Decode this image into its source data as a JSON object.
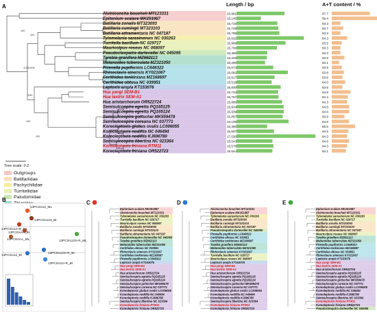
{
  "panel_a": {
    "label": "A",
    "length_header": "Length / bp",
    "at_header": "A+T content / %",
    "tree_scale": "Tree scale: 0.2",
    "taxa": [
      {
        "name": "Alviniconcha boucheti MT123331",
        "length": "15,961",
        "at": "67.7",
        "family": "Outgroups",
        "red": false
      },
      {
        "name": "Epitonium scalare MK251987",
        "length": "15,145",
        "at": "69.4",
        "family": "Outgroups",
        "red": false
      },
      {
        "name": "Batillaria zonalis MT323093",
        "length": "15,716",
        "at": "63.3",
        "family": "Batillariidae",
        "red": false
      },
      {
        "name": "Batillaria cumingii MT323103",
        "length": "15,749",
        "at": "63.7",
        "family": "Batillariidae",
        "red": false
      },
      {
        "name": "Batillaria attramentaria NC 047187",
        "length": "15,785",
        "at": "63.3",
        "family": "Batillariidae",
        "red": false
      },
      {
        "name": "Tylomelania sarasinorum NC 030263",
        "length": "16,632",
        "at": "64.3",
        "family": "Pachychilidae",
        "red": false
      },
      {
        "name": "Turritella bacillum NC 029717",
        "length": "15,999",
        "at": "63.5",
        "family": "Turritellidae",
        "red": false
      },
      {
        "name": "Mauricolpus roseus NC 068097",
        "length": "15,700",
        "at": "63.3",
        "family": "Turritellidae",
        "red": false
      },
      {
        "name": "Pseudocleopatra dartevellei NC 045095",
        "length": "15,366",
        "at": "63.3",
        "family": "Paludomidae",
        "red": false
      },
      {
        "name": "Tarebia granifera MZ662113",
        "length": "15,349",
        "at": "63.9",
        "family": "Thiaridae",
        "red": false
      },
      {
        "name": "Melanoides tuberculata MZ321050",
        "length": "15,290",
        "at": "63.1",
        "family": "Thiaridae",
        "red": false
      },
      {
        "name": "Pirenella pupiformis LC648322",
        "length": "15,574",
        "at": "63.5",
        "family": "Potamididae",
        "red": false
      },
      {
        "name": "Rhinoclavis sinensis KY021067",
        "length": "16,082",
        "at": "63.8",
        "family": "Potamididae",
        "red": false
      },
      {
        "name": "Cerithidea tonkiniana MZ168697",
        "length": "15,617",
        "at": "63.6",
        "family": "Potamididae",
        "red": false
      },
      {
        "name": "Cerithidea obtusa NC 039951",
        "length": "15,518",
        "at": "64.0",
        "family": "Potamididae",
        "red": false
      },
      {
        "name": "Leptoxis ampla KT153076",
        "length": "15,830",
        "at": "63.6",
        "family": "Pleuroceridae",
        "red": false
      },
      {
        "name": "Hua yangi SEM-B1",
        "length": "15,744",
        "at": "64.8",
        "family": "Semisulcospiridae",
        "red": true
      },
      {
        "name": "Hua textrix SEM-A1",
        "length": "15,757",
        "at": "64.4",
        "family": "Semisulcospiridae",
        "red": true
      },
      {
        "name": "Hua aristarchorum OR522724",
        "length": "15,880",
        "at": "64.3",
        "family": "Semisulcospiridae",
        "red": false
      },
      {
        "name": "Semisulcospira egretta PQ165125",
        "length": "15,934",
        "at": "64.6",
        "family": "Semisulcospiridae",
        "red": false
      },
      {
        "name": "Semisulcospira egretta PQ165124",
        "length": "15,939",
        "at": "64.6",
        "family": "Semisulcospiridae",
        "red": false
      },
      {
        "name": "Semisulcospira gottschei MK559478",
        "length": "15,897",
        "at": "63.9",
        "family": "Semisulcospiridae",
        "red": false
      },
      {
        "name": "Semisulcospira coreana NC 037771",
        "length": "16,105",
        "at": "64.6",
        "family": "Semisulcospiridae",
        "red": false
      },
      {
        "name": "Koreoleptoxis globus ovalis LC006055",
        "length": "15,360",
        "at": "65.5",
        "family": "Semisulcospiridae",
        "red": false
      },
      {
        "name": "Koreoleptoxis nodifila NC 046494",
        "length": "15,597",
        "at": "64.5",
        "family": "Semisulcospiridae",
        "red": false
      },
      {
        "name": "Koreoleptoxis nodifila KJ696780",
        "length": "17,030",
        "at": "64.3",
        "family": "Semisulcospiridae",
        "red": false
      },
      {
        "name": "Semisulcospira libertina NC 023364",
        "length": "15,543",
        "at": "64.6",
        "family": "Semisulcospiridae",
        "red": false
      },
      {
        "name": "Koreoleptoxis friniana RTM11",
        "length": "15,578",
        "at": "64.3",
        "family": "Semisulcospiridae",
        "red": true
      },
      {
        "name": "Koreoleptoxis friniana OR522723",
        "length": "15,544",
        "at": "64.1",
        "family": "Semisulcospiridae",
        "red": false
      }
    ],
    "nodes": [
      "100",
      "100",
      "1/100/100",
      "1/90",
      "100",
      "100"
    ],
    "legend": [
      {
        "label": "Outgroups",
        "color": "#f6c7c7"
      },
      {
        "label": "Batillariidae",
        "color": "#f8dfb8"
      },
      {
        "label": "Pachychilidae",
        "color": "#f4eca2"
      },
      {
        "label": "Turritellidae",
        "color": "#e7efb3"
      },
      {
        "label": "Paludomidae",
        "color": "#c8e6b2"
      },
      {
        "label": "Thiaridae",
        "color": "#a7dbc8"
      },
      {
        "label": "Potamididae",
        "color": "#a8dde6"
      },
      {
        "label": "Pleuroceridae",
        "color": "#b8cde9"
      },
      {
        "label": "Semisulcospiridae",
        "color": "#d3bde3"
      }
    ]
  },
  "panel_b": {
    "label": "B",
    "points": [
      {
        "label": "13PCGs12_ML",
        "color": "#e5562a"
      },
      {
        "label": "13PCGs123_BI",
        "color": "#8a3a20"
      },
      {
        "label": "13PCGs12+R_ML",
        "color": "#c33a1a"
      },
      {
        "label": "13PCGsAA_BI",
        "color": "#a84b2a"
      },
      {
        "label": "13PCGsAA_ML",
        "color": "#b35530"
      },
      {
        "label": "13PCGs123+R_ML",
        "color": "#4aa83a"
      },
      {
        "label": "13PCGs123+R_BI",
        "color": "#2b6ec2"
      },
      {
        "label": "13PCGs12_BI",
        "color": "#2f6fc0"
      },
      {
        "label": "13PCGs12+R_BI",
        "color": "#3d85d8"
      }
    ]
  },
  "panel_c": {
    "label": "C",
    "marker_color": "#d9362a",
    "taxa": [
      "Epitonium scalare MK251987",
      "Alviniconcha boucheti MT123331",
      "Tylomelania sarasinorum NC 030263",
      "Turritella bacillum NC 029717",
      "Mauricolpus roseus NC 068097",
      "Batillaria zonalis MT323093",
      "Batillaria cumingii MT323103",
      "Batillaria attramentaria NC 047187",
      "Pseudocleopatra dartevellei NC 045095",
      "Tarebia granifera MZ662113",
      "Melanoides tuberculata MZ321050",
      "Cerithidea obtusa NC 039951",
      "Rhinoclavis sinensis KY021067",
      "Cerithidea tonkiniana MZ168697",
      "Pirenella pupiformis LC648322",
      "Leptoxis ampla KT153076",
      "Hua yangi SEM-B1",
      "Hua textrix SEM-A1",
      "Hua aristarchorum OR522724",
      "Semisulcospira egretta PQ165125",
      "Semisulcospira egretta PQ165124",
      "Semisulcospira gottschei MK559478",
      "Semisulcospira coreana NC 037771",
      "Koreoleptoxis globus ovalis LC006055",
      "Koreoleptoxis nodifila NC 046494",
      "Koreoleptoxis nodifila KJ696780",
      "Semisulcospira libertina NC 023364",
      "Koreoleptoxis friniana RTM11",
      "Koreoleptoxis friniana OR522723"
    ]
  },
  "panel_d": {
    "label": "D",
    "marker_color": "#2b7bd1",
    "taxa": [
      "Alviniconcha boucheti MT123331",
      "Epitonium scalare MK251987",
      "Tylomelania sarasinorum NC 030263",
      "Batillaria zonalis MT323093",
      "Batillaria cumingii MT323103",
      "Batillaria attramentaria NC 047187",
      "Pseudocleopatra dartevellei NC 045095",
      "Pirenella pupiformis LC648322",
      "Cerithidea obtusa NC 039951",
      "Cerithidea tonkiniana MZ168697",
      "Tarebia granifera MZ662113",
      "Melanoides tuberculata MZ321050",
      "Rhinoclavis sinensis KY021067",
      "Turritella bacillum NC 029717",
      "Mauricolpus roseus NC 068097",
      "Leptoxis ampla KT153076",
      "Hua yangi SEM-B1",
      "Hua textrix SEM-A1",
      "Hua aristarchorum OR522724",
      "Semisulcospira egretta PQ165125",
      "Semisulcospira egretta PQ165124",
      "Semisulcospira gottschei MK559478",
      "Semisulcospira coreana NC 037771",
      "Koreoleptoxis globus ovalis LC006055",
      "Koreoleptoxis nodifila NC 046494",
      "Koreoleptoxis nodifila KJ696780",
      "Semisulcospira libertina NC 023364",
      "Koreoleptoxis friniana RTM11",
      "Koreoleptoxis friniana OR522723"
    ]
  },
  "panel_e": {
    "label": "E",
    "marker_color": "#3da83a",
    "taxa": [
      "Epitonium scalare MK251987",
      "Alviniconcha boucheti MT123331",
      "Tylomelania sarasinorum NC 030263",
      "Turritella bacillum NC 029717",
      "Batillaria zonalis MT323093",
      "Batillaria cumingii MT323103",
      "Batillaria attramentaria NC 047187",
      "Mauricolpus roseus NC 068097",
      "Tarebia granifera MZ662113",
      "Melanoides tuberculata MZ321050",
      "Pirenella pupiformis LC648322",
      "Cerithidea tonkiniana MZ168697",
      "Cerithidea obtusa NC 039951",
      "Rhinoclavis sinensis KY021067",
      "Leptoxis ampla KT153076",
      "Hua yangi SEM-B1",
      "Hua textrix SEM-A1",
      "Hua aristarchorum OR522724",
      "Semisulcospira egretta PQ165125",
      "Semisulcospira egretta PQ165124",
      "Semisulcospira gottschei MK559478",
      "Semisulcospira coreana NC 037771",
      "Koreoleptoxis globus ovalis LC006055",
      "Koreoleptoxis nodifila NC 046494",
      "Koreoleptoxis nodifila KJ696780",
      "Semisulcospira libertina NC 023364",
      "Koreoleptoxis friniana RTM11",
      "Koreoleptoxis friniana OR522723",
      "Pseudocleopatra dartevellei NC 045095"
    ]
  }
}
